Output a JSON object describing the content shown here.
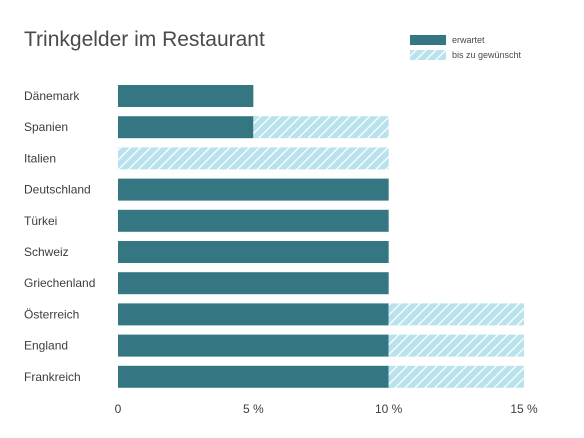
{
  "chart_data": {
    "type": "bar",
    "orientation": "horizontal",
    "stacked": true,
    "title": "Trinkgelder im Restaurant",
    "categories": [
      "Dänemark",
      "Spanien",
      "Italien",
      "Deutschland",
      "Türkei",
      "Schweiz",
      "Griechenland",
      "Österreich",
      "England",
      "Frankreich"
    ],
    "series": [
      {
        "name": "erwartet",
        "values": [
          5,
          5,
          0,
          10,
          10,
          10,
          10,
          10,
          10,
          10
        ],
        "color": "#347783",
        "pattern": "solid"
      },
      {
        "name": "bis zu gewünscht",
        "values": [
          0,
          5,
          10,
          0,
          0,
          0,
          0,
          5,
          5,
          5
        ],
        "color": "#b8e2ec",
        "pattern": "hatched"
      }
    ],
    "xlim": [
      0,
      15
    ],
    "xticks": [
      {
        "value": 0,
        "label": "0"
      },
      {
        "value": 5,
        "label": "5 %"
      },
      {
        "value": 10,
        "label": "10 %"
      },
      {
        "value": 15,
        "label": "15 %"
      }
    ],
    "xlabel": "",
    "ylabel": "",
    "grid": false,
    "legend_position": "top-right"
  }
}
